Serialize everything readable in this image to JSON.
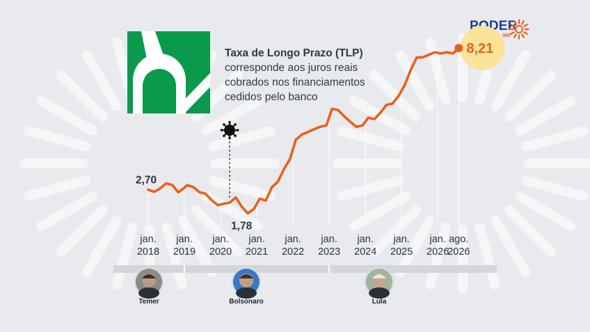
{
  "brand": {
    "name": "PODER",
    "sub": "360",
    "accent": "#e8611c",
    "color": "#1f3f8f"
  },
  "header": {
    "title": "Taxa de Longo Prazo (TLP)",
    "description_lines": [
      "corresponde aos juros reais",
      "cobrados nos financiamentos",
      "cedidos pelo banco"
    ]
  },
  "chart_data": {
    "type": "line",
    "title": "Taxa de Longo Prazo (TLP)",
    "xlabel": "",
    "ylabel": "",
    "ylim": [
      1.2,
      9.0
    ],
    "xlim": [
      2018.0,
      2026.65
    ],
    "line_color": "#e8611c",
    "tick_labels": [
      {
        "x": 2018.0,
        "line1": "jan.",
        "line2": "2018"
      },
      {
        "x": 2019.0,
        "line1": "jan.",
        "line2": "2019"
      },
      {
        "x": 2020.0,
        "line1": "jan.",
        "line2": "2020"
      },
      {
        "x": 2021.0,
        "line1": "jan.",
        "line2": "2021"
      },
      {
        "x": 2022.0,
        "line1": "jan.",
        "line2": "2022"
      },
      {
        "x": 2023.0,
        "line1": "jan.",
        "line2": "2023"
      },
      {
        "x": 2024.0,
        "line1": "jan.",
        "line2": "2024"
      },
      {
        "x": 2025.0,
        "line1": "jan.",
        "line2": "2025"
      },
      {
        "x": 2026.0,
        "line1": "jan.",
        "line2": "2026"
      },
      {
        "x": 2026.58,
        "line1": "ago.",
        "line2": "2026"
      }
    ],
    "series": [
      {
        "points": [
          [
            2018.0,
            2.7
          ],
          [
            2018.17,
            2.62
          ],
          [
            2018.33,
            2.75
          ],
          [
            2018.5,
            2.95
          ],
          [
            2018.67,
            2.88
          ],
          [
            2018.83,
            2.6
          ],
          [
            2018.95,
            2.72
          ],
          [
            2019.08,
            2.88
          ],
          [
            2019.25,
            2.8
          ],
          [
            2019.42,
            2.6
          ],
          [
            2019.58,
            2.55
          ],
          [
            2019.75,
            2.3
          ],
          [
            2019.92,
            2.1
          ],
          [
            2020.08,
            2.15
          ],
          [
            2020.25,
            2.2
          ],
          [
            2020.42,
            2.4
          ],
          [
            2020.58,
            2.05
          ],
          [
            2020.75,
            1.78
          ],
          [
            2020.92,
            1.95
          ],
          [
            2021.08,
            2.35
          ],
          [
            2021.25,
            2.28
          ],
          [
            2021.42,
            2.8
          ],
          [
            2021.58,
            3.0
          ],
          [
            2021.75,
            3.5
          ],
          [
            2021.92,
            3.9
          ],
          [
            2022.08,
            4.65
          ],
          [
            2022.25,
            4.85
          ],
          [
            2022.42,
            4.95
          ],
          [
            2022.58,
            5.05
          ],
          [
            2022.75,
            5.15
          ],
          [
            2022.92,
            5.2
          ],
          [
            2023.08,
            5.85
          ],
          [
            2023.25,
            5.8
          ],
          [
            2023.42,
            5.55
          ],
          [
            2023.58,
            5.35
          ],
          [
            2023.75,
            5.15
          ],
          [
            2023.92,
            5.2
          ],
          [
            2024.08,
            5.5
          ],
          [
            2024.25,
            5.45
          ],
          [
            2024.42,
            5.7
          ],
          [
            2024.58,
            6.0
          ],
          [
            2024.75,
            6.05
          ],
          [
            2024.92,
            6.35
          ],
          [
            2025.08,
            6.75
          ],
          [
            2025.25,
            7.35
          ],
          [
            2025.42,
            7.85
          ],
          [
            2025.58,
            7.85
          ],
          [
            2025.75,
            7.95
          ],
          [
            2025.92,
            8.05
          ],
          [
            2026.08,
            8.0
          ],
          [
            2026.25,
            8.05
          ],
          [
            2026.42,
            8.0
          ],
          [
            2026.58,
            8.21
          ]
        ]
      }
    ],
    "annotations": {
      "start": {
        "x": 2018.0,
        "y": 2.7,
        "label": "2,70"
      },
      "min": {
        "x": 2020.75,
        "y": 1.78,
        "label": "1,78"
      },
      "last": {
        "x": 2026.58,
        "y": 8.21,
        "label": "8,21"
      },
      "covid_marker_x": 2020.25
    }
  },
  "presidents": [
    {
      "name": "Temer",
      "start": 2018.0,
      "end": 2019.0
    },
    {
      "name": "Bolsonaro",
      "start": 2019.0,
      "end": 2023.0
    },
    {
      "name": "Lula",
      "start": 2023.0,
      "end": 2026.65
    }
  ]
}
